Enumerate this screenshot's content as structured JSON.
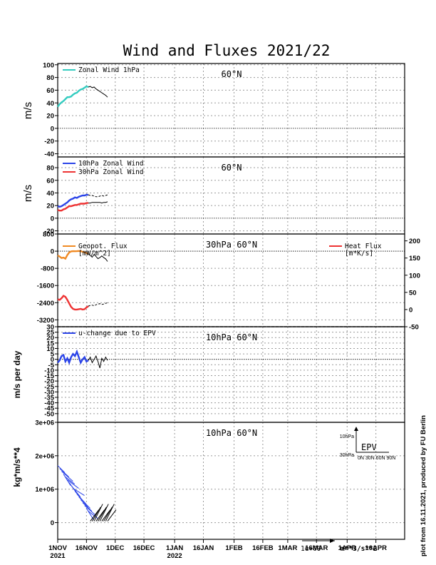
{
  "title": "Wind and Fluxes 2021/22",
  "credit": "plot from 16.11.2021, produced by FU Berlin",
  "x_ticks": [
    "1NOV",
    "16NOV",
    "1DEC",
    "16DEC",
    "1JAN",
    "16JAN",
    "1FEB",
    "16FEB",
    "1MAR",
    "16MAR",
    "1APR",
    "16APR"
  ],
  "x_year_labels": [
    {
      "date": "1NOV",
      "label": "2021"
    },
    {
      "date": "1JAN",
      "label": "2022"
    }
  ],
  "arrow_scale_label": "1e+09",
  "arrow_units": "m**3/s**2",
  "chart_data": [
    {
      "type": "line",
      "title": "60°N",
      "ylabel": "m/s",
      "ylim": [
        -45,
        102
      ],
      "yticks": [
        -40,
        -20,
        0,
        20,
        40,
        60,
        80,
        100
      ],
      "series": [
        {
          "name": "Zonal Wind 1hPa",
          "color": "#33ccc0",
          "style": "solid",
          "x": [
            0,
            1,
            2,
            3,
            4,
            5,
            6,
            7,
            8,
            9,
            10,
            11,
            12,
            13,
            14,
            15,
            16
          ],
          "values": [
            34,
            38,
            41,
            43,
            46,
            49,
            49,
            50,
            53,
            55,
            56,
            59,
            61,
            62,
            64,
            66,
            65
          ]
        },
        {
          "name": "",
          "color": "#000000",
          "style": "solid",
          "x": [
            16,
            17,
            18,
            19,
            20,
            21,
            22,
            23,
            24,
            25,
            26
          ],
          "values": [
            65,
            66,
            64,
            65,
            62,
            60,
            58,
            56,
            54,
            52,
            49
          ]
        }
      ]
    },
    {
      "type": "line",
      "title": "60°N",
      "ylabel": "m/s",
      "ylim": [
        -25,
        97
      ],
      "yticks": [
        -20,
        0,
        20,
        40,
        60,
        80
      ],
      "series": [
        {
          "name": "10hPa Zonal Wind",
          "color": "#2b44e8",
          "style": "solid",
          "x": [
            0,
            1,
            2,
            3,
            4,
            5,
            6,
            7,
            8,
            9,
            10,
            11,
            12,
            13,
            14,
            15,
            16
          ],
          "values": [
            19,
            18,
            19,
            21,
            23,
            25,
            28,
            30,
            31,
            33,
            32,
            34,
            35,
            36,
            36,
            37,
            37
          ]
        },
        {
          "name": "30hPa Zonal Wind",
          "color": "#ee3333",
          "style": "solid",
          "x": [
            0,
            1,
            2,
            3,
            4,
            5,
            6,
            7,
            8,
            9,
            10,
            11,
            12,
            13,
            14,
            15,
            16
          ],
          "values": [
            13,
            12,
            12,
            14,
            15,
            17,
            19,
            19,
            20,
            21,
            21,
            22,
            23,
            23,
            23,
            24,
            24
          ]
        },
        {
          "name": "",
          "color": "#000000",
          "style": "dashed",
          "x": [
            16,
            17,
            18,
            19,
            20,
            21,
            22,
            23,
            24,
            25,
            26
          ],
          "values": [
            37,
            36,
            36,
            35,
            34,
            34,
            35,
            36,
            35,
            36,
            37
          ]
        },
        {
          "name": "",
          "color": "#000000",
          "style": "solid",
          "x": [
            16,
            17,
            18,
            19,
            20,
            21,
            22,
            23,
            24,
            25,
            26
          ],
          "values": [
            24,
            24,
            25,
            25,
            25,
            25,
            25,
            24,
            25,
            25,
            26
          ]
        }
      ]
    },
    {
      "type": "line",
      "title": "30hPa 60°N",
      "ylim": [
        -3520,
        800
      ],
      "yticks": [
        -3200,
        -2400,
        -1600,
        -800,
        0,
        800
      ],
      "y2lim": [
        -50,
        220
      ],
      "y2ticks": [
        -50,
        0,
        50,
        100,
        150,
        200
      ],
      "series": [
        {
          "name": "Geopot. Flux [mW/m^2]",
          "axis": "left",
          "color": "#f08a24",
          "style": "solid",
          "x": [
            0,
            1,
            2,
            3,
            4,
            5,
            6,
            7,
            8,
            9,
            10,
            11,
            12,
            13,
            14,
            15,
            16
          ],
          "values": [
            -200,
            -250,
            -320,
            -300,
            -350,
            -180,
            -60,
            -10,
            0,
            -5,
            0,
            10,
            0,
            -30,
            -50,
            -90,
            -120
          ]
        },
        {
          "name": "Heat Flux [m*K/s]",
          "axis": "right",
          "color": "#ee3333",
          "style": "solid",
          "x": [
            0,
            1,
            2,
            3,
            4,
            5,
            6,
            7,
            8,
            9,
            10,
            11,
            12,
            13,
            14,
            15,
            16
          ],
          "values": [
            30,
            28,
            33,
            40,
            37,
            28,
            18,
            8,
            2,
            0,
            0,
            1,
            2,
            0,
            1,
            6,
            10
          ]
        },
        {
          "name": "",
          "axis": "left",
          "color": "#000000",
          "style": "solid",
          "x": [
            16,
            17,
            18,
            19,
            20,
            21,
            22,
            23,
            24,
            25,
            26
          ],
          "values": [
            -120,
            -200,
            -280,
            -150,
            -250,
            -350,
            -300,
            -220,
            -300,
            -360,
            -480
          ]
        },
        {
          "name": "",
          "axis": "right",
          "color": "#000000",
          "style": "dashed",
          "x": [
            16,
            17,
            18,
            19,
            20,
            21,
            22,
            23,
            24,
            25,
            26
          ],
          "values": [
            10,
            12,
            13,
            11,
            14,
            16,
            17,
            15,
            16,
            18,
            20
          ]
        }
      ]
    },
    {
      "type": "line",
      "title": "10hPa 60°N",
      "ylabel": "m/s per day",
      "ylim": [
        -58,
        30
      ],
      "yticks": [
        -50,
        -45,
        -40,
        -35,
        -30,
        -25,
        -20,
        -15,
        -10,
        -5,
        0,
        5,
        10,
        15,
        20,
        25,
        30
      ],
      "series": [
        {
          "name": "u-change due to EPV",
          "color": "#2b44e8",
          "style": "solid",
          "x": [
            0,
            1,
            2,
            3,
            4,
            5,
            6,
            7,
            8,
            9,
            10,
            11,
            12,
            13,
            14,
            15,
            16
          ],
          "values": [
            -3,
            -1,
            3,
            4,
            -2,
            1,
            -3,
            2,
            5,
            3,
            7,
            2,
            -3,
            0,
            2,
            -2,
            -1
          ]
        },
        {
          "name": "",
          "color": "#000000",
          "style": "solid",
          "x": [
            16,
            17,
            18,
            19,
            20,
            21,
            22,
            23,
            24,
            25,
            26
          ],
          "values": [
            -1,
            2,
            -3,
            0,
            3,
            -2,
            -8,
            1,
            -2,
            2,
            -1
          ]
        }
      ]
    },
    {
      "type": "quiver",
      "title": "10hPa 60°N",
      "ylabel": "kg*m/s**4",
      "ylim": [
        -500000,
        3000000
      ],
      "ytick_labels": [
        "0",
        "1e+06",
        "2e+06",
        "3e+06"
      ],
      "yticks": [
        0,
        1000000,
        2000000,
        3000000
      ],
      "inset": {
        "label": "EPV",
        "y_levels": [
          "10hPa",
          "30hPa"
        ],
        "x_levels": "0N 30N 60N 90N"
      },
      "arrows_blue_days": [
        0,
        1,
        2,
        3,
        4,
        5,
        6,
        7,
        8,
        9,
        10,
        11,
        12,
        13,
        14,
        15,
        16
      ],
      "arrows_black_days": [
        17,
        18,
        19,
        20,
        21,
        22,
        23,
        24,
        25,
        26
      ]
    }
  ]
}
